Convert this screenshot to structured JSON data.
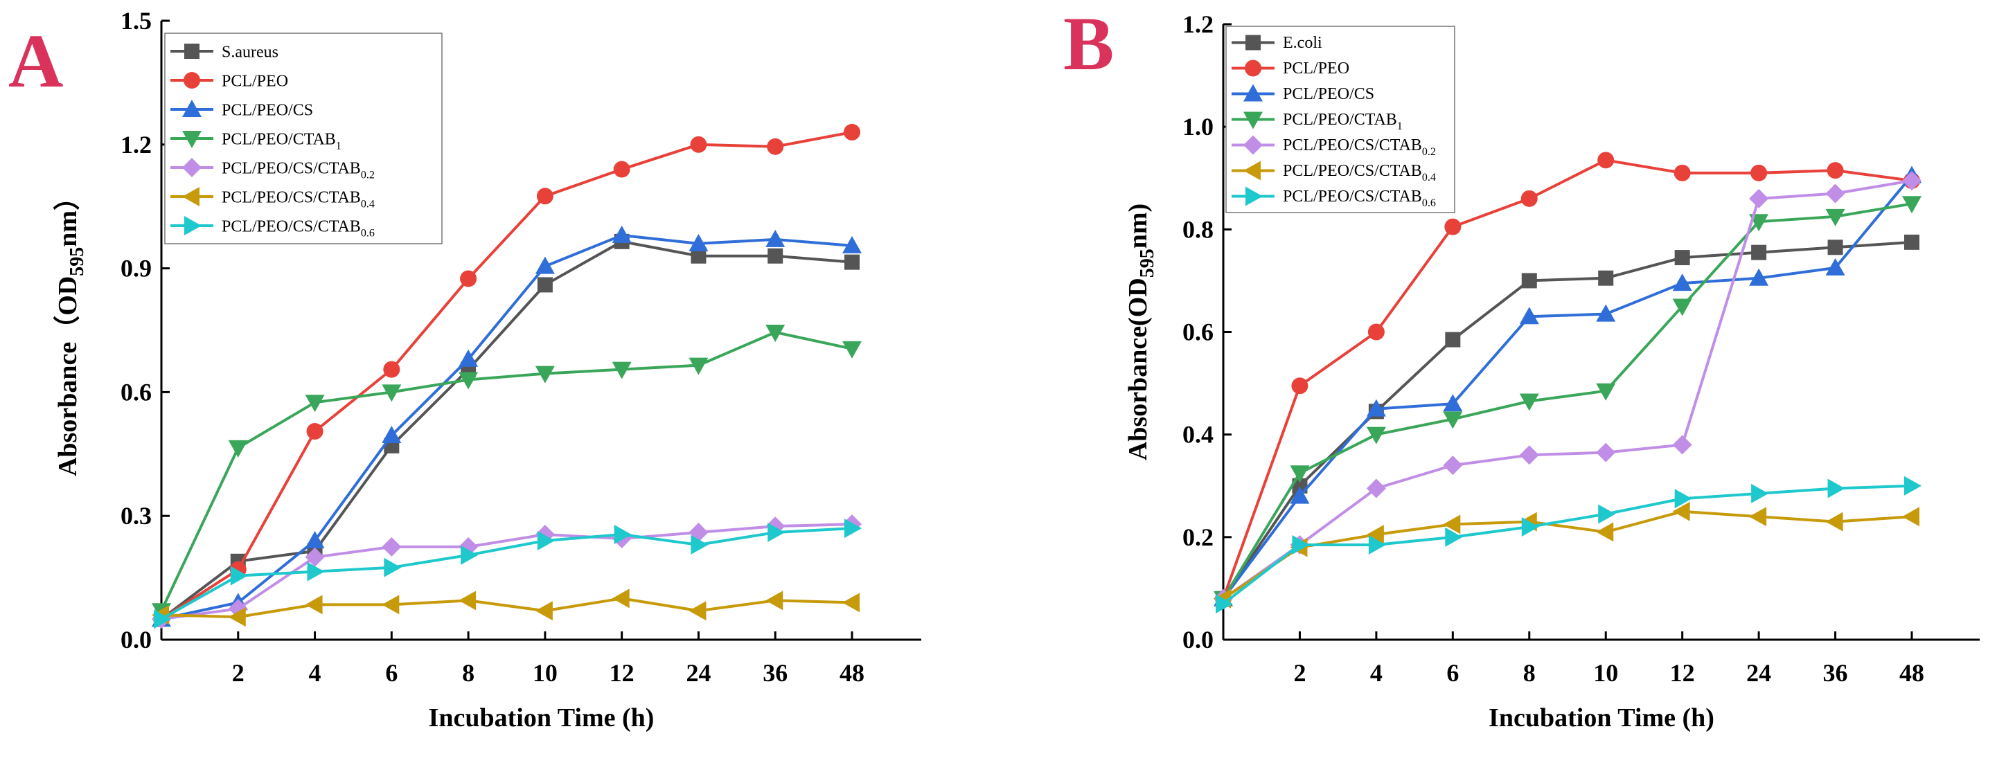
{
  "chart_data": [
    {
      "type": "line",
      "panel_label": "A",
      "title": "",
      "xlabel": "Incubation Time (h)",
      "ylabel_main": "Absorbance",
      "ylabel_paren_open": "（OD",
      "ylabel_sub": "595",
      "ylabel_paren_close": "nm）",
      "ylim": [
        0,
        1.5
      ],
      "yticks": [
        "0.0",
        "0.3",
        "0.6",
        "0.9",
        "1.2",
        "1.5"
      ],
      "x": [
        "0",
        "2",
        "4",
        "6",
        "8",
        "10",
        "12",
        "24",
        "36",
        "48"
      ],
      "xtick_labels": [
        "2",
        "4",
        "6",
        "8",
        "10",
        "12",
        "24",
        "36",
        "48"
      ],
      "legend_position": "top-left",
      "series": [
        {
          "name": "S.aureus",
          "name_sub": "",
          "color": "#555555",
          "marker": "square",
          "values": [
            0.05,
            0.19,
            0.215,
            0.47,
            0.655,
            0.86,
            0.965,
            0.93,
            0.93,
            0.915
          ]
        },
        {
          "name": "PCL/PEO",
          "name_sub": "",
          "color": "#e8413a",
          "marker": "circle",
          "values": [
            0.05,
            0.17,
            0.505,
            0.655,
            0.875,
            1.075,
            1.14,
            1.2,
            1.195,
            1.23
          ]
        },
        {
          "name": "PCL/PEO/CS",
          "name_sub": "",
          "color": "#2f6ed8",
          "marker": "triangle-up",
          "values": [
            0.05,
            0.09,
            0.24,
            0.495,
            0.68,
            0.905,
            0.98,
            0.96,
            0.97,
            0.955
          ]
        },
        {
          "name": "PCL/PEO/CTAB",
          "name_sub": "1",
          "color": "#3aa65a",
          "marker": "triangle-down",
          "values": [
            0.07,
            0.465,
            0.575,
            0.6,
            0.63,
            0.645,
            0.655,
            0.665,
            0.745,
            0.705
          ]
        },
        {
          "name": "PCL/PEO/CS/CTAB",
          "name_sub": "0.2",
          "color": "#c08ee6",
          "marker": "diamond",
          "values": [
            0.05,
            0.075,
            0.2,
            0.225,
            0.225,
            0.255,
            0.245,
            0.26,
            0.275,
            0.28
          ]
        },
        {
          "name": "PCL/PEO/CS/CTAB",
          "name_sub": "0.4",
          "color": "#c79a0a",
          "marker": "triangle-left",
          "values": [
            0.06,
            0.055,
            0.085,
            0.085,
            0.095,
            0.07,
            0.1,
            0.07,
            0.095,
            0.09
          ]
        },
        {
          "name": "PCL/PEO/CS/CTAB",
          "name_sub": "0.6",
          "color": "#1ec8cc",
          "marker": "triangle-right",
          "values": [
            0.05,
            0.155,
            0.165,
            0.175,
            0.205,
            0.24,
            0.255,
            0.23,
            0.26,
            0.27
          ]
        }
      ]
    },
    {
      "type": "line",
      "panel_label": "B",
      "title": "",
      "xlabel": "Incubation Time (h)",
      "ylabel_main": "Absorbance",
      "ylabel_paren_open": "(OD",
      "ylabel_sub": "595",
      "ylabel_paren_close": "nm)",
      "ylim": [
        0,
        1.2
      ],
      "yticks": [
        "0.0",
        "0.2",
        "0.4",
        "0.6",
        "0.8",
        "1.0",
        "1.2"
      ],
      "x": [
        "0",
        "2",
        "4",
        "6",
        "8",
        "10",
        "12",
        "24",
        "36",
        "48"
      ],
      "xtick_labels": [
        "2",
        "4",
        "6",
        "8",
        "10",
        "12",
        "24",
        "36",
        "48"
      ],
      "legend_position": "top-left",
      "series": [
        {
          "name": "E.coli",
          "name_sub": "",
          "color": "#555555",
          "marker": "square",
          "values": [
            0.08,
            0.3,
            0.445,
            0.585,
            0.7,
            0.705,
            0.745,
            0.755,
            0.765,
            0.775
          ]
        },
        {
          "name": "PCL/PEO",
          "name_sub": "",
          "color": "#e8413a",
          "marker": "circle",
          "values": [
            0.08,
            0.495,
            0.6,
            0.805,
            0.86,
            0.935,
            0.91,
            0.91,
            0.915,
            0.895
          ]
        },
        {
          "name": "PCL/PEO/CS",
          "name_sub": "",
          "color": "#2f6ed8",
          "marker": "triangle-up",
          "values": [
            0.08,
            0.28,
            0.45,
            0.46,
            0.63,
            0.635,
            0.695,
            0.705,
            0.725,
            0.905
          ]
        },
        {
          "name": "PCL/PEO/CTAB",
          "name_sub": "1",
          "color": "#3aa65a",
          "marker": "triangle-down",
          "values": [
            0.08,
            0.325,
            0.4,
            0.43,
            0.465,
            0.485,
            0.65,
            0.815,
            0.825,
            0.85
          ]
        },
        {
          "name": "PCL/PEO/CS/CTAB",
          "name_sub": "0.2",
          "color": "#c08ee6",
          "marker": "diamond",
          "values": [
            0.08,
            0.185,
            0.295,
            0.34,
            0.36,
            0.365,
            0.38,
            0.86,
            0.87,
            0.895
          ]
        },
        {
          "name": "PCL/PEO/CS/CTAB",
          "name_sub": "0.4",
          "color": "#c79a0a",
          "marker": "triangle-left",
          "values": [
            0.08,
            0.18,
            0.205,
            0.225,
            0.23,
            0.21,
            0.25,
            0.24,
            0.23,
            0.24
          ]
        },
        {
          "name": "PCL/PEO/CS/CTAB",
          "name_sub": "0.6",
          "color": "#1ec8cc",
          "marker": "triangle-right",
          "values": [
            0.07,
            0.185,
            0.185,
            0.2,
            0.22,
            0.245,
            0.275,
            0.285,
            0.295,
            0.3
          ]
        }
      ]
    }
  ],
  "colors": {
    "panel_label": "#d9335b",
    "axis": "#000000"
  }
}
